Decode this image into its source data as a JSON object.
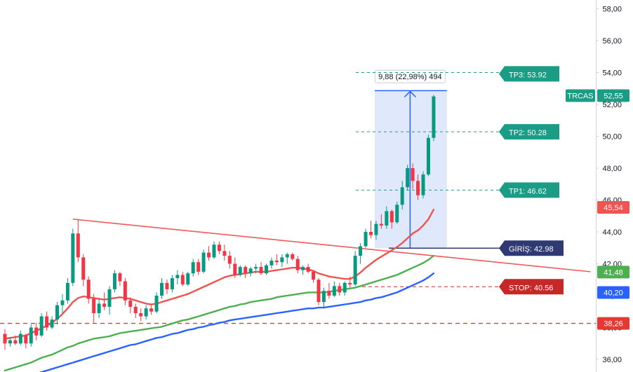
{
  "chart_data": {
    "type": "candlestick",
    "symbol": "TRCAS",
    "last_price": "52,55",
    "y_axis": {
      "range": [
        35.4,
        58.6
      ],
      "ticks": [
        "36,00",
        "38,00",
        "40,00",
        "42,00",
        "44,00",
        "46,00",
        "48,00",
        "50,00",
        "52,00",
        "54,00",
        "56,00",
        "58,00"
      ],
      "tick_values": [
        36,
        38,
        40,
        42,
        44,
        46,
        48,
        50,
        52,
        54,
        56,
        58
      ]
    },
    "candles": [
      [
        37.6,
        37.9,
        36.6,
        37.0
      ],
      [
        37.0,
        37.4,
        36.8,
        37.2
      ],
      [
        37.2,
        37.5,
        36.9,
        37.0
      ],
      [
        37.0,
        37.8,
        36.9,
        37.6
      ],
      [
        37.5,
        37.6,
        36.7,
        37.0
      ],
      [
        37.0,
        38.2,
        36.8,
        38.0
      ],
      [
        38.0,
        38.3,
        37.2,
        37.5
      ],
      [
        37.5,
        38.9,
        37.4,
        38.7
      ],
      [
        38.7,
        39.0,
        37.8,
        38.0
      ],
      [
        38.0,
        38.7,
        37.9,
        38.5
      ],
      [
        38.5,
        39.6,
        38.2,
        39.4
      ],
      [
        39.4,
        40.1,
        38.9,
        39.7
      ],
      [
        39.7,
        41.1,
        39.5,
        40.8
      ],
      [
        40.8,
        44.2,
        40.6,
        43.9
      ],
      [
        43.9,
        44.8,
        42.1,
        42.4
      ],
      [
        42.4,
        42.6,
        40.6,
        41.0
      ],
      [
        41.0,
        41.2,
        39.5,
        39.8
      ],
      [
        39.8,
        40.1,
        38.3,
        38.9
      ],
      [
        38.9,
        39.8,
        38.6,
        39.5
      ],
      [
        39.5,
        40.2,
        39.1,
        39.3
      ],
      [
        39.3,
        40.6,
        38.8,
        40.4
      ],
      [
        40.4,
        41.6,
        40.2,
        41.4
      ],
      [
        41.4,
        41.5,
        40.6,
        40.9
      ],
      [
        40.9,
        41.1,
        39.4,
        39.7
      ],
      [
        39.7,
        39.9,
        38.9,
        39.3
      ],
      [
        39.3,
        39.5,
        38.6,
        38.9
      ],
      [
        38.9,
        39.2,
        38.4,
        38.7
      ],
      [
        38.7,
        39.4,
        38.5,
        39.2
      ],
      [
        39.2,
        39.5,
        38.8,
        39.0
      ],
      [
        39.0,
        40.2,
        38.9,
        40.0
      ],
      [
        40.0,
        41.1,
        39.8,
        40.8
      ],
      [
        40.8,
        41.0,
        40.1,
        40.4
      ],
      [
        40.4,
        41.3,
        40.2,
        41.1
      ],
      [
        41.1,
        41.6,
        40.7,
        41.3
      ],
      [
        41.3,
        41.5,
        40.6,
        40.7
      ],
      [
        40.7,
        41.5,
        40.6,
        41.4
      ],
      [
        41.4,
        42.3,
        41.2,
        42.1
      ],
      [
        42.1,
        42.3,
        41.3,
        41.5
      ],
      [
        41.5,
        42.9,
        41.4,
        42.7
      ],
      [
        42.7,
        43.1,
        42.2,
        42.4
      ],
      [
        42.4,
        43.4,
        42.3,
        43.2
      ],
      [
        43.2,
        43.4,
        42.6,
        42.8
      ],
      [
        42.8,
        43.2,
        42.2,
        42.5
      ],
      [
        42.5,
        42.8,
        41.7,
        42.0
      ],
      [
        42.0,
        42.4,
        41.1,
        41.3
      ],
      [
        41.3,
        41.9,
        41.2,
        41.8
      ],
      [
        41.8,
        41.9,
        41.1,
        41.4
      ],
      [
        41.4,
        41.8,
        41.2,
        41.7
      ],
      [
        41.7,
        42.0,
        41.4,
        41.8
      ],
      [
        41.8,
        42.1,
        41.3,
        41.4
      ],
      [
        41.4,
        42.0,
        41.3,
        41.9
      ],
      [
        41.9,
        42.4,
        41.7,
        42.2
      ],
      [
        42.2,
        42.6,
        41.9,
        42.1
      ],
      [
        42.1,
        42.6,
        41.8,
        42.4
      ],
      [
        42.4,
        42.7,
        42.0,
        42.6
      ],
      [
        42.6,
        42.7,
        42.2,
        42.3
      ],
      [
        42.3,
        42.5,
        41.4,
        41.6
      ],
      [
        41.6,
        41.9,
        41.3,
        41.8
      ],
      [
        41.8,
        42.0,
        41.4,
        41.5
      ],
      [
        41.5,
        41.6,
        40.8,
        41.0
      ],
      [
        41.0,
        41.1,
        39.4,
        39.6
      ],
      [
        39.6,
        40.5,
        39.3,
        40.3
      ],
      [
        40.3,
        40.8,
        39.8,
        40.0
      ],
      [
        40.0,
        40.9,
        39.9,
        40.6
      ],
      [
        40.6,
        40.8,
        40.0,
        40.2
      ],
      [
        40.2,
        40.9,
        40.0,
        40.8
      ],
      [
        40.8,
        41.2,
        40.5,
        40.7
      ],
      [
        40.7,
        42.8,
        40.6,
        42.5
      ],
      [
        42.5,
        43.3,
        42.0,
        43.1
      ],
      [
        43.1,
        44.2,
        43.0,
        44.0
      ],
      [
        44.0,
        44.7,
        43.6,
        43.8
      ],
      [
        43.8,
        44.7,
        43.5,
        44.5
      ],
      [
        44.5,
        45.1,
        44.2,
        44.4
      ],
      [
        44.4,
        45.6,
        44.2,
        45.3
      ],
      [
        45.3,
        45.4,
        44.2,
        44.6
      ],
      [
        44.6,
        45.9,
        44.5,
        45.7
      ],
      [
        45.7,
        47.2,
        45.4,
        46.8
      ],
      [
        46.8,
        48.2,
        46.6,
        48.0
      ],
      [
        48.0,
        48.3,
        46.7,
        47.2
      ],
      [
        47.2,
        47.6,
        46.0,
        46.3
      ],
      [
        46.3,
        47.8,
        46.1,
        47.6
      ],
      [
        47.6,
        50.1,
        47.5,
        49.9
      ],
      [
        49.9,
        52.6,
        49.7,
        52.5
      ]
    ],
    "ema_fast": [
      37.3,
      37.35,
      37.4,
      37.45,
      37.5,
      37.65,
      37.8,
      37.95,
      38.1,
      38.3,
      38.55,
      38.85,
      39.2,
      39.6,
      39.85,
      39.95,
      39.9,
      39.85,
      39.8,
      39.75,
      39.8,
      39.85,
      39.9,
      39.85,
      39.8,
      39.7,
      39.6,
      39.5,
      39.45,
      39.5,
      39.6,
      39.7,
      39.8,
      39.9,
      40.0,
      40.1,
      40.25,
      40.4,
      40.55,
      40.7,
      40.85,
      41.0,
      41.15,
      41.25,
      41.3,
      41.35,
      41.4,
      41.45,
      41.5,
      41.5,
      41.5,
      41.55,
      41.6,
      41.65,
      41.7,
      41.75,
      41.75,
      41.7,
      41.65,
      41.55,
      41.4,
      41.3,
      41.2,
      41.15,
      41.1,
      41.05,
      41.05,
      41.2,
      41.45,
      41.75,
      42.0,
      42.25,
      42.45,
      42.65,
      42.85,
      43.05,
      43.3,
      43.6,
      43.9,
      44.1,
      44.4,
      44.8,
      45.4
    ],
    "ema_mid": [
      35.3,
      35.4,
      35.5,
      35.6,
      35.7,
      35.8,
      35.95,
      36.1,
      36.2,
      36.3,
      36.45,
      36.6,
      36.75,
      36.85,
      37.0,
      37.1,
      37.2,
      37.3,
      37.35,
      37.4,
      37.45,
      37.55,
      37.65,
      37.7,
      37.75,
      37.8,
      37.85,
      37.9,
      37.95,
      38.0,
      38.05,
      38.15,
      38.25,
      38.35,
      38.45,
      38.5,
      38.6,
      38.7,
      38.8,
      38.9,
      39.0,
      39.1,
      39.2,
      39.3,
      39.35,
      39.45,
      39.5,
      39.6,
      39.65,
      39.7,
      39.75,
      39.8,
      39.9,
      39.95,
      40.0,
      40.05,
      40.1,
      40.15,
      40.2,
      40.2,
      40.2,
      40.2,
      40.25,
      40.3,
      40.35,
      40.4,
      40.45,
      40.5,
      40.6,
      40.7,
      40.8,
      40.9,
      41.0,
      41.1,
      41.2,
      41.3,
      41.45,
      41.6,
      41.75,
      41.9,
      42.05,
      42.25,
      42.5
    ],
    "ema_slow": [
      34.5,
      34.6,
      34.7,
      34.8,
      34.9,
      35.0,
      35.1,
      35.2,
      35.3,
      35.4,
      35.5,
      35.6,
      35.7,
      35.8,
      35.9,
      36.0,
      36.1,
      36.2,
      36.3,
      36.4,
      36.5,
      36.6,
      36.7,
      36.8,
      36.9,
      36.95,
      37.05,
      37.15,
      37.25,
      37.35,
      37.4,
      37.5,
      37.6,
      37.65,
      37.75,
      37.85,
      37.9,
      38.0,
      38.05,
      38.15,
      38.2,
      38.3,
      38.35,
      38.45,
      38.5,
      38.55,
      38.6,
      38.65,
      38.7,
      38.75,
      38.8,
      38.85,
      38.9,
      38.95,
      39.0,
      39.05,
      39.1,
      39.15,
      39.2,
      39.2,
      39.25,
      39.25,
      39.3,
      39.35,
      39.4,
      39.45,
      39.5,
      39.55,
      39.6,
      39.7,
      39.75,
      39.85,
      39.9,
      40.0,
      40.1,
      40.2,
      40.35,
      40.5,
      40.65,
      40.8,
      40.95,
      41.15,
      41.4
    ],
    "trendline": {
      "from": {
        "bar": 13,
        "price": 44.8
      },
      "to": {
        "bar": 112,
        "price": 41.5
      }
    },
    "levels": {
      "tp3": {
        "text": "TP3: 53.92",
        "price": 53.92
      },
      "tp2": {
        "text": "TP2: 50.28",
        "price": 50.28
      },
      "tp1": {
        "text": "TP1: 46.62",
        "price": 46.62
      },
      "entry": {
        "text": "GİRİŞ: 42.98",
        "price": 42.98
      },
      "stop": {
        "text": "STOP: 40.56",
        "price": 40.56
      },
      "support": {
        "price": 38.26
      }
    },
    "measure": {
      "text": "9,88 (22,98%) 494",
      "from_bar": 71,
      "to_bar": 84,
      "low": 42.98,
      "high": 52.86
    },
    "price_tags": [
      {
        "text": "45,54",
        "price": 45.54,
        "color": "#f05350"
      },
      {
        "text": "41,48",
        "price": 41.48,
        "color": "#4caf50"
      },
      {
        "text": "40,20",
        "price": 40.2,
        "color": "#2962ff"
      },
      {
        "text": "38,26",
        "price": 38.26,
        "color": "#e53935"
      }
    ],
    "colors": {
      "up": "#089981",
      "down": "#f23645",
      "ema_fast": "#ef5350",
      "ema_mid": "#4caf50",
      "ema_slow": "#2962ff",
      "trend": "#f05a5a",
      "target": "#1b9c85",
      "entry": "#2f3a72",
      "stop": "#c62828",
      "measure_fill": "#dbe5fc",
      "measure_line": "#2962ff",
      "axis_border": "#d1d4dc"
    }
  }
}
